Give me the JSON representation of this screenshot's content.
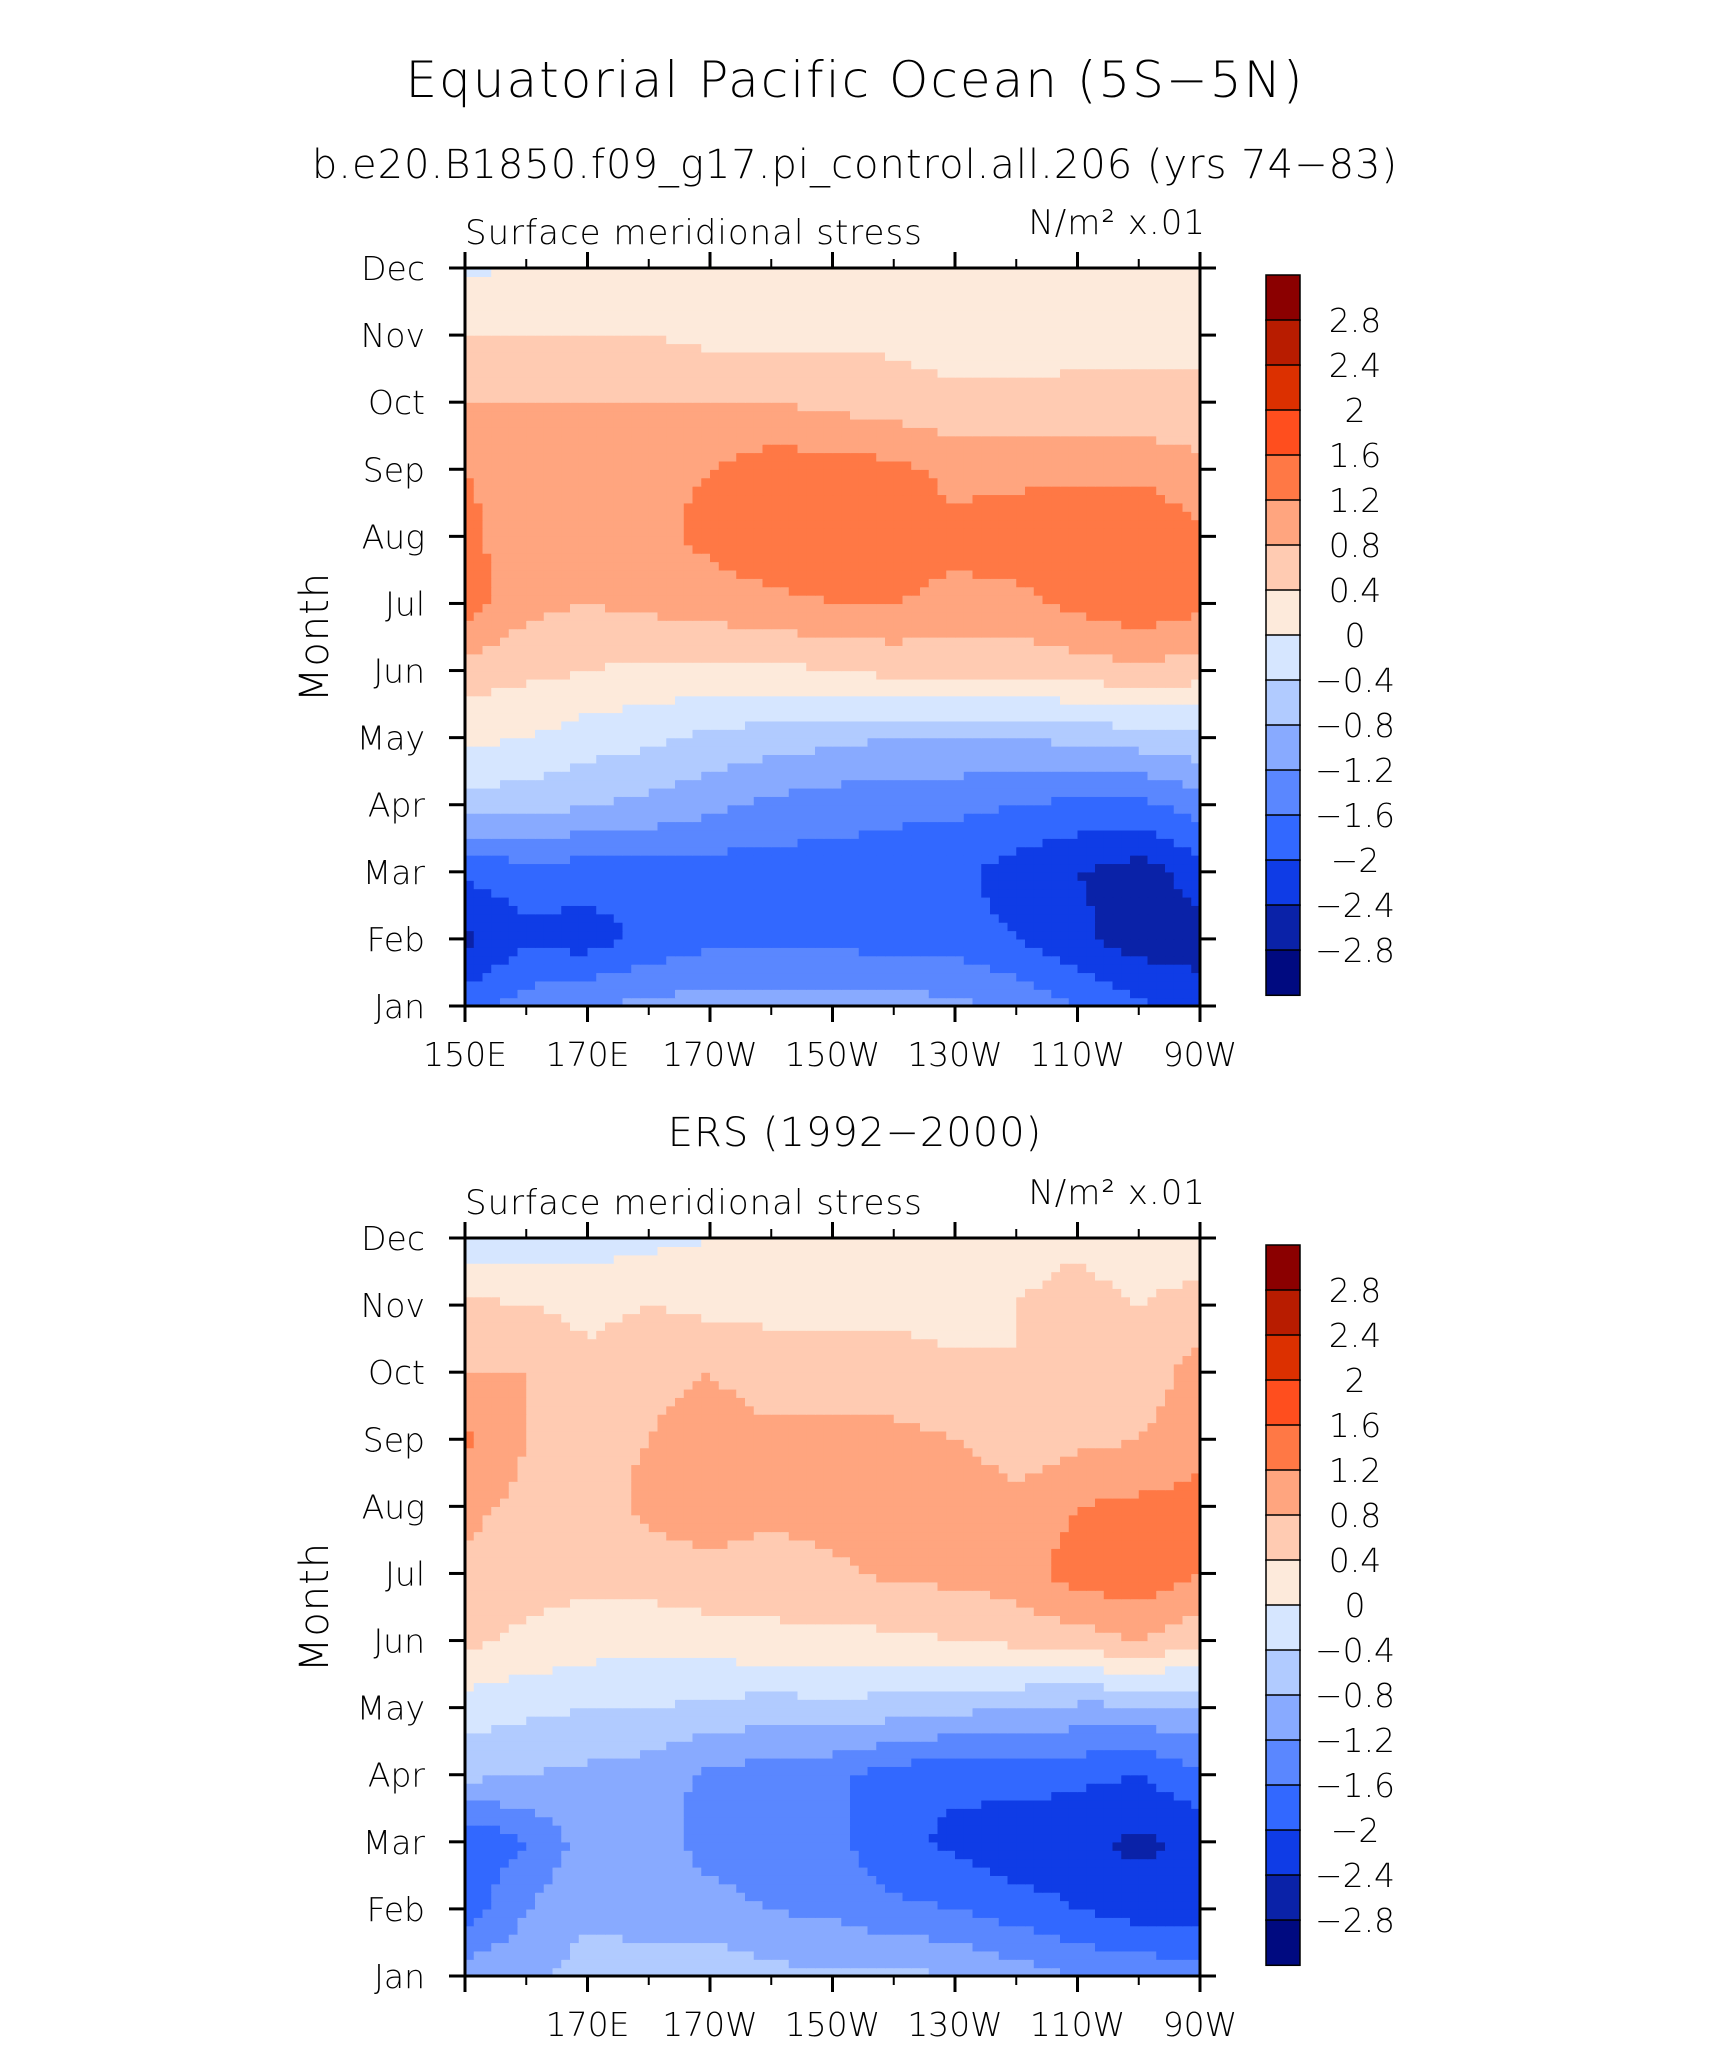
{
  "header": {
    "title": "Equatorial Pacific Ocean (5S−5N)",
    "subtitle": "b.e20.B1850.f09_g17.pi_control.all.206 (yrs 74−83)"
  },
  "panels": [
    {
      "title": "",
      "variable": "Surface meridional stress",
      "units": "N/m² x.01",
      "ylabel": "Month",
      "y_ticks": [
        "Jan",
        "Feb",
        "Mar",
        "Apr",
        "May",
        "Jun",
        "Jul",
        "Aug",
        "Sep",
        "Oct",
        "Nov",
        "Dec"
      ],
      "x_ticks": [
        "150E",
        "170E",
        "170W",
        "150W",
        "130W",
        "110W",
        "90W"
      ]
    },
    {
      "title": "ERS (1992−2000)",
      "variable": "Surface meridional stress",
      "units": "N/m² x.01",
      "ylabel": "Month",
      "y_ticks": [
        "Jan",
        "Feb",
        "Mar",
        "Apr",
        "May",
        "Jun",
        "Jul",
        "Aug",
        "Sep",
        "Oct",
        "Nov",
        "Dec"
      ],
      "x_ticks": [
        "",
        "170E",
        "170W",
        "150W",
        "130W",
        "110W",
        "90W"
      ]
    }
  ],
  "colorbar": {
    "labels": [
      "2.8",
      "2.4",
      "2",
      "1.6",
      "1.2",
      "0.8",
      "0.4",
      "0",
      "−0.4",
      "−0.8",
      "−1.2",
      "−1.6",
      "−2",
      "−2.4",
      "−2.8"
    ],
    "colors": [
      "#8b0000",
      "#b81c00",
      "#dc3000",
      "#ff4e1e",
      "#ff7845",
      "#ffa57f",
      "#ffcbb2",
      "#fdeadb",
      "#d6e6ff",
      "#b1cbff",
      "#88aaff",
      "#5a87ff",
      "#3268ff",
      "#0f3ce6",
      "#0a22a8",
      "#000a80"
    ]
  },
  "chart_data": [
    {
      "type": "heatmap",
      "title": "Equatorial Pacific Ocean (5S−5N)",
      "subtitle": "b.e20.B1850.f09_g17.pi_control.all.206 (yrs 74−83)",
      "variable": "Surface meridional stress",
      "units": "N/m² x.01",
      "xlabel": "",
      "ylabel": "Month",
      "x": [
        150,
        160,
        170,
        180,
        190,
        200,
        210,
        220,
        230,
        240,
        250,
        260,
        270
      ],
      "x_ticks": [
        "150E",
        "170E",
        "170W",
        "150W",
        "130W",
        "110W",
        "90W"
      ],
      "y": [
        "Jan",
        "Feb",
        "Mar",
        "Apr",
        "May",
        "Jun",
        "Jul",
        "Aug",
        "Sep",
        "Oct",
        "Nov",
        "Dec"
      ],
      "levels": [
        -2.8,
        -2.4,
        -2.0,
        -1.6,
        -1.2,
        -0.8,
        -0.4,
        0,
        0.4,
        0.8,
        1.2,
        1.6,
        2.0,
        2.4,
        2.8
      ],
      "z": [
        [
          -1.8,
          -1.4,
          -1.2,
          -1.1,
          -1.0,
          -1.0,
          -1.0,
          -1.0,
          -1.1,
          -1.3,
          -1.6,
          -1.9,
          -2.2
        ],
        [
          -2.5,
          -2.1,
          -2.2,
          -1.9,
          -1.7,
          -1.7,
          -1.7,
          -1.8,
          -1.8,
          -2.0,
          -2.3,
          -2.6,
          -2.6
        ],
        [
          -1.9,
          -1.8,
          -1.8,
          -1.8,
          -1.8,
          -1.8,
          -1.8,
          -1.8,
          -1.9,
          -2.2,
          -2.4,
          -2.6,
          -2.2
        ],
        [
          -0.6,
          -0.6,
          -0.8,
          -0.9,
          -1.1,
          -1.3,
          -1.4,
          -1.5,
          -1.5,
          -1.6,
          -1.7,
          -1.7,
          -1.4
        ],
        [
          0.1,
          0.0,
          -0.2,
          -0.3,
          -0.5,
          -0.6,
          -0.7,
          -0.8,
          -0.8,
          -0.8,
          -0.7,
          -0.6,
          -0.5
        ],
        [
          0.6,
          0.5,
          0.4,
          0.3,
          0.3,
          0.3,
          0.4,
          0.5,
          0.5,
          0.5,
          0.6,
          0.7,
          0.6
        ],
        [
          1.4,
          0.9,
          0.8,
          0.9,
          1.0,
          1.1,
          1.2,
          1.2,
          1.1,
          1.1,
          1.3,
          1.5,
          1.3
        ],
        [
          1.3,
          1.0,
          1.0,
          1.1,
          1.3,
          1.5,
          1.5,
          1.4,
          1.3,
          1.4,
          1.5,
          1.6,
          1.3
        ],
        [
          1.2,
          1.0,
          1.0,
          1.1,
          1.2,
          1.4,
          1.4,
          1.3,
          1.1,
          1.1,
          1.1,
          1.1,
          0.9
        ],
        [
          0.8,
          0.8,
          0.8,
          0.8,
          0.8,
          0.8,
          0.7,
          0.6,
          0.5,
          0.5,
          0.5,
          0.5,
          0.5
        ],
        [
          0.4,
          0.4,
          0.4,
          0.4,
          0.3,
          0.3,
          0.3,
          0.3,
          0.2,
          0.2,
          0.3,
          0.3,
          0.3
        ],
        [
          -0.1,
          0.1,
          0.2,
          0.1,
          0.1,
          0.0,
          0.0,
          0.1,
          0.1,
          0.1,
          0.1,
          0.1,
          0.1
        ]
      ]
    },
    {
      "type": "heatmap",
      "title": "ERS (1992−2000)",
      "variable": "Surface meridional stress",
      "units": "N/m² x.01",
      "xlabel": "",
      "ylabel": "Month",
      "x": [
        150,
        160,
        170,
        180,
        190,
        200,
        210,
        220,
        230,
        240,
        250,
        260,
        270
      ],
      "x_ticks": [
        "",
        "170E",
        "170W",
        "150W",
        "130W",
        "110W",
        "90W"
      ],
      "y": [
        "Jan",
        "Feb",
        "Mar",
        "Apr",
        "May",
        "Jun",
        "Jul",
        "Aug",
        "Sep",
        "Oct",
        "Nov",
        "Dec"
      ],
      "levels": [
        -2.8,
        -2.4,
        -2.0,
        -1.6,
        -1.2,
        -0.8,
        -0.4,
        0,
        0.4,
        0.8,
        1.2,
        1.6,
        2.0,
        2.4,
        2.8
      ],
      "z": [
        [
          -1.0,
          -0.9,
          -0.6,
          -0.6,
          -0.5,
          -0.7,
          -0.7,
          -0.7,
          -0.8,
          -1.0,
          -1.2,
          -1.3,
          -1.4
        ],
        [
          -1.8,
          -1.2,
          -0.9,
          -1.0,
          -1.1,
          -1.2,
          -1.3,
          -1.5,
          -1.6,
          -1.8,
          -2.0,
          -2.2,
          -2.2
        ],
        [
          -2.0,
          -1.6,
          -1.0,
          -1.1,
          -1.3,
          -1.4,
          -1.5,
          -1.9,
          -2.1,
          -2.3,
          -2.3,
          -2.5,
          -2.3
        ],
        [
          -0.7,
          -0.8,
          -0.9,
          -1.0,
          -1.3,
          -1.4,
          -1.5,
          -1.8,
          -1.9,
          -1.8,
          -1.9,
          -2.0,
          -1.7
        ],
        [
          -0.2,
          -0.3,
          -0.4,
          -0.4,
          -0.5,
          -0.6,
          -0.5,
          -0.6,
          -0.7,
          -0.8,
          -0.9,
          -0.9,
          -0.8
        ],
        [
          0.5,
          0.3,
          0.2,
          0.1,
          0.2,
          0.3,
          0.3,
          0.3,
          0.4,
          0.5,
          0.6,
          0.8,
          0.5
        ],
        [
          0.7,
          0.6,
          0.5,
          0.6,
          0.7,
          0.6,
          0.7,
          0.9,
          0.9,
          1.0,
          1.4,
          1.5,
          1.2
        ],
        [
          0.9,
          0.7,
          0.6,
          0.9,
          1.0,
          0.9,
          1.0,
          1.1,
          1.1,
          0.9,
          1.2,
          1.3,
          1.3
        ],
        [
          1.3,
          0.8,
          0.7,
          0.8,
          1.0,
          0.9,
          0.9,
          0.9,
          0.8,
          0.6,
          0.7,
          0.8,
          1.1
        ],
        [
          0.8,
          0.8,
          0.5,
          0.7,
          0.8,
          0.6,
          0.6,
          0.6,
          0.5,
          0.4,
          0.6,
          0.5,
          1.0
        ],
        [
          0.5,
          0.4,
          0.3,
          0.4,
          0.3,
          0.3,
          0.3,
          0.3,
          0.2,
          0.4,
          0.6,
          0.4,
          0.6
        ],
        [
          -0.3,
          -0.2,
          -0.2,
          -0.1,
          0.0,
          0.1,
          0.2,
          0.2,
          0.2,
          0.2,
          0.3,
          0.1,
          0.1
        ]
      ]
    }
  ]
}
